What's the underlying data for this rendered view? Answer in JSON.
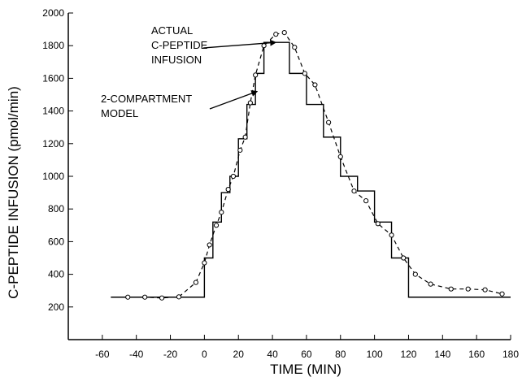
{
  "chart_data": {
    "type": "line",
    "title": "",
    "xlabel": "TIME (MIN)",
    "ylabel": "C-PEPTIDE INFUSION (pmol/min)",
    "xlim": [
      -80,
      180
    ],
    "ylim": [
      0,
      2000
    ],
    "x_ticks": [
      -60,
      -40,
      -20,
      0,
      20,
      40,
      60,
      80,
      100,
      120,
      140,
      160,
      180
    ],
    "y_ticks": [
      200,
      400,
      600,
      800,
      1000,
      1200,
      1400,
      1600,
      1800,
      2000
    ],
    "grid": false,
    "series": [
      {
        "name": "ACTUAL C-PEPTIDE INFUSION",
        "style": "step",
        "x": [
          -55,
          0,
          5,
          10,
          15,
          20,
          25,
          30,
          35,
          50,
          60,
          70,
          80,
          90,
          100,
          110,
          120,
          180
        ],
        "y": [
          260,
          500,
          720,
          900,
          1000,
          1230,
          1440,
          1630,
          1820,
          1630,
          1440,
          1240,
          1000,
          910,
          720,
          500,
          260,
          260
        ]
      },
      {
        "name": "2-COMPARTMENT MODEL",
        "style": "dashed-circles",
        "x": [
          -45,
          -35,
          -25,
          -15,
          -5,
          0,
          3,
          7,
          10,
          14,
          17,
          21,
          24,
          27,
          30,
          35,
          42,
          47,
          53,
          59,
          65,
          73,
          80,
          88,
          95,
          102,
          110,
          117,
          124,
          133,
          145,
          155,
          165,
          175
        ],
        "y": [
          260,
          260,
          255,
          262,
          350,
          470,
          580,
          700,
          780,
          920,
          1000,
          1160,
          1240,
          1450,
          1620,
          1800,
          1870,
          1880,
          1790,
          1630,
          1560,
          1330,
          1120,
          910,
          850,
          710,
          640,
          500,
          400,
          340,
          310,
          310,
          305,
          280
        ]
      }
    ],
    "annotations": [
      {
        "lines": [
          "ACTUAL",
          "C-PEPTIDE",
          "INFUSION"
        ],
        "target": [
          42,
          1820
        ]
      },
      {
        "lines": [
          "2-COMPARTMENT",
          "MODEL"
        ],
        "target": [
          31,
          1520
        ]
      }
    ]
  }
}
